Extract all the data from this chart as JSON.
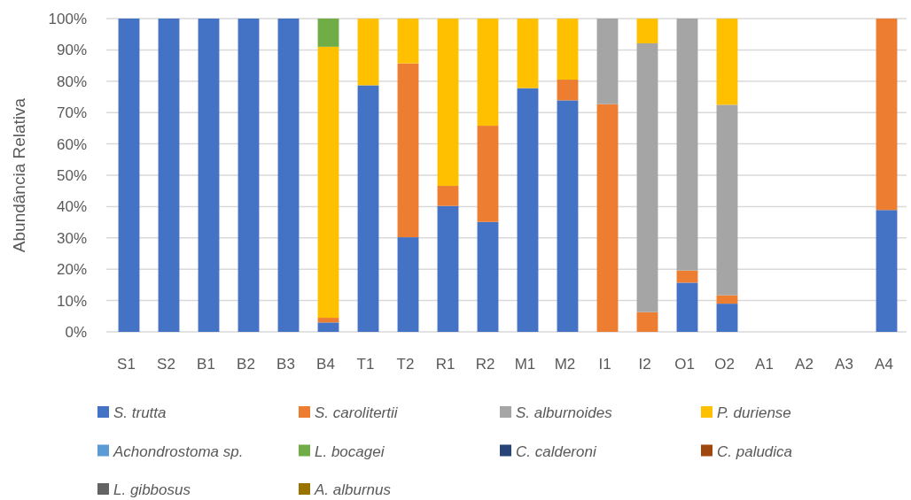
{
  "chart_data": {
    "type": "bar",
    "stacked": true,
    "ylabel": "Abundância Relativa",
    "categories": [
      "S1",
      "S2",
      "B1",
      "B2",
      "B3",
      "B4",
      "T1",
      "T2",
      "R1",
      "R2",
      "M1",
      "M2",
      "I1",
      "I2",
      "O1",
      "O2",
      "A1",
      "A2",
      "A3",
      "A4"
    ],
    "series": [
      {
        "name": "S. trutta",
        "color": "#4472c4",
        "values": [
          100,
          100,
          100,
          100,
          100,
          3,
          78.7,
          30.2,
          40.2,
          35.1,
          77.8,
          73.9,
          0,
          0,
          15.7,
          9,
          0,
          0,
          0,
          38.9
        ]
      },
      {
        "name": "S. carolitertii",
        "color": "#ed7d31",
        "values": [
          0,
          0,
          0,
          0,
          0,
          1.5,
          0,
          55.5,
          6.4,
          30.7,
          0,
          6.6,
          72.7,
          6.3,
          3.9,
          2.7,
          0,
          0,
          0,
          61.1
        ]
      },
      {
        "name": "S. alburnoides",
        "color": "#a5a5a5",
        "values": [
          0,
          0,
          0,
          0,
          0,
          0,
          0,
          0,
          0,
          0,
          0,
          0,
          27.3,
          85.8,
          80.4,
          60.8,
          0,
          0,
          0,
          0
        ]
      },
      {
        "name": "P. duriense",
        "color": "#ffc000",
        "values": [
          0,
          0,
          0,
          0,
          0,
          86.5,
          21.3,
          14.3,
          53.4,
          34.2,
          22.2,
          19.5,
          0,
          7.9,
          0,
          27.5,
          0,
          0,
          0,
          0
        ]
      },
      {
        "name": "Achondrostoma sp.",
        "color": "#5b9bd5",
        "values": [
          0,
          0,
          0,
          0,
          0,
          0,
          0,
          0,
          0,
          0,
          0,
          0,
          0,
          0,
          0,
          0,
          0,
          0,
          0,
          0
        ]
      },
      {
        "name": "L. bocagei",
        "color": "#70ad47",
        "values": [
          0,
          0,
          0,
          0,
          0,
          9,
          0,
          0,
          0,
          0,
          0,
          0,
          0,
          0,
          0,
          0,
          0,
          0,
          0,
          0
        ]
      },
      {
        "name": "C. calderoni",
        "color": "#264478",
        "values": [
          0,
          0,
          0,
          0,
          0,
          0,
          0,
          0,
          0,
          0,
          0,
          0,
          0,
          0,
          0,
          0,
          0,
          0,
          0,
          0
        ]
      },
      {
        "name": "C. paludica",
        "color": "#9e480e",
        "values": [
          0,
          0,
          0,
          0,
          0,
          0,
          0,
          0,
          0,
          0,
          0,
          0,
          0,
          0,
          0,
          0,
          0,
          0,
          0,
          0
        ]
      },
      {
        "name": "L. gibbosus",
        "color": "#636363",
        "values": [
          0,
          0,
          0,
          0,
          0,
          0,
          0,
          0,
          0,
          0,
          0,
          0,
          0,
          0,
          0,
          0,
          0,
          0,
          0,
          0
        ]
      },
      {
        "name": "A. alburnus",
        "color": "#997300",
        "values": [
          0,
          0,
          0,
          0,
          0,
          0,
          0,
          0,
          0,
          0,
          0,
          0,
          0,
          0,
          0,
          0,
          0,
          0,
          0,
          0
        ]
      }
    ],
    "ylim": [
      0,
      100
    ],
    "yticks": [
      {
        "value": 0,
        "label": "0%"
      },
      {
        "value": 10,
        "label": "10%"
      },
      {
        "value": 20,
        "label": "20%"
      },
      {
        "value": 30,
        "label": "30%"
      },
      {
        "value": 40,
        "label": "40%"
      },
      {
        "value": 50,
        "label": "50%"
      },
      {
        "value": 60,
        "label": "60%"
      },
      {
        "value": 70,
        "label": "70%"
      },
      {
        "value": 80,
        "label": "80%"
      },
      {
        "value": 90,
        "label": "90%"
      },
      {
        "value": 100,
        "label": "100%"
      }
    ],
    "grid": "y",
    "legend": "bottom"
  }
}
